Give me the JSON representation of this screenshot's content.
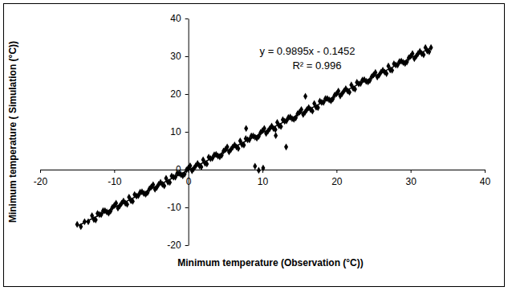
{
  "chart_data": {
    "type": "scatter",
    "x_label": "Minimum temperature (Observation (°C))",
    "y_label": "Minimum temperature ( Simulation (°C))",
    "annotations": [
      "y = 0.9895x - 0.1452",
      "R² = 0.996"
    ],
    "xlim": [
      -20,
      40
    ],
    "xticks": [
      -20,
      -10,
      0,
      10,
      20,
      30,
      40
    ],
    "ylim": [
      -20,
      40
    ],
    "yticks": [
      -20,
      -10,
      0,
      10,
      20,
      30,
      40
    ],
    "grid": false,
    "series": [
      {
        "type": "scatter",
        "color": "#000000",
        "marker": "diamond",
        "x": [
          -15,
          -14.5,
          -14,
          -13.5,
          -13,
          -12.5,
          -12,
          -11.5,
          -11,
          -10.5,
          -10,
          -9.5,
          -9,
          -8.5,
          -8,
          -7.5,
          -7,
          -6.5,
          -6,
          -5.5,
          -5,
          -4.5,
          -4,
          -3.5,
          -3,
          -2.5,
          -2,
          -1.5,
          -1,
          -0.5,
          0,
          0.5,
          1,
          1.5,
          2,
          2.5,
          3,
          3.5,
          4,
          4.5,
          5,
          5.5,
          6,
          6.5,
          7,
          7.5,
          8,
          8.5,
          9,
          9.5,
          10,
          10.5,
          11,
          11.5,
          12,
          12.5,
          13,
          13.5,
          14,
          14.5,
          15,
          15.5,
          16,
          16.5,
          17,
          17.5,
          18,
          18.5,
          19,
          19.5,
          20,
          20.5,
          21,
          21.5,
          22,
          22.5,
          23,
          23.5,
          24,
          24.5,
          25,
          25.5,
          26,
          26.5,
          27,
          27.5,
          28,
          28.5,
          29,
          29.5,
          30,
          30.5,
          31,
          31.5,
          32,
          32.5,
          -12.75,
          -12.25,
          -11.75,
          -11.25,
          -10.75,
          -10.25,
          -9.75,
          -9.25,
          -8.75,
          -8.25,
          -7.75,
          -7.25,
          -6.75,
          -6.25,
          -5.75,
          -5.25,
          -4.75,
          -4.25,
          -3.75,
          -3.25,
          -2.75,
          -2.25,
          -1.75,
          -1.25,
          -0.75,
          -0.25,
          0.25,
          0.75,
          1.25,
          1.75,
          2.25,
          2.75,
          3.25,
          3.75,
          4.25,
          4.75,
          5.25,
          5.75,
          6.25,
          6.75,
          7.25,
          7.75,
          8.25,
          8.75,
          9.25,
          9.75,
          10.25,
          10.75,
          11.25,
          11.75,
          12.25,
          12.75,
          13.25,
          13.75,
          14.25,
          14.75,
          15.25,
          15.75,
          16.25,
          16.75,
          17.25,
          17.75,
          18.25,
          18.75,
          19.25,
          19.75,
          20.25,
          20.75,
          21.25,
          21.75,
          22.25,
          22.75,
          23.25,
          23.75,
          24.25,
          24.75,
          25.25,
          25.75,
          26.25,
          26.75,
          27.25,
          27.75,
          28.25,
          28.75,
          29.25,
          29.75,
          30.25,
          30.75,
          31.25,
          31.75,
          32.25,
          32.75,
          9.0,
          9.5,
          10.1,
          13.2,
          11.8,
          7.8,
          15.8
        ],
        "values": [
          -14.5,
          -15.1,
          -13.8,
          -13.8,
          -12.2,
          -13.3,
          -11.9,
          -10.9,
          -11.2,
          -11.0,
          -9.5,
          -10.2,
          -8.9,
          -8.9,
          -7.3,
          -8.4,
          -7.0,
          -6.0,
          -6.3,
          -6.1,
          -4.6,
          -5.2,
          -3.9,
          -3.9,
          -2.3,
          -3.4,
          -2.0,
          -1.0,
          -1.3,
          -1.2,
          0.4,
          -0.3,
          1.0,
          1.0,
          2.6,
          1.5,
          2.9,
          3.9,
          3.6,
          3.8,
          5.3,
          4.7,
          6.0,
          6.0,
          7.6,
          6.5,
          7.9,
          8.9,
          8.6,
          8.8,
          10.3,
          9.6,
          10.9,
          10.9,
          12.5,
          11.4,
          12.8,
          13.8,
          13.5,
          13.7,
          15.2,
          14.6,
          15.9,
          15.9,
          17.5,
          16.4,
          17.8,
          18.8,
          18.5,
          18.7,
          20.1,
          19.5,
          20.8,
          20.8,
          22.4,
          21.3,
          22.7,
          23.7,
          23.4,
          23.6,
          25.1,
          24.5,
          25.8,
          25.8,
          27.4,
          26.3,
          27.7,
          28.6,
          28.4,
          28.5,
          30.0,
          29.4,
          30.7,
          30.7,
          32.3,
          31.2,
          -13.2,
          -11.6,
          -11.9,
          -10.9,
          -11.5,
          -10.0,
          -8.9,
          -9.6,
          -8.3,
          -9.2,
          -8.2,
          -6.6,
          -6.9,
          -5.9,
          -6.5,
          -5.1,
          -4.0,
          -4.7,
          -3.4,
          -4.3,
          -3.3,
          -1.7,
          -2.0,
          -1.0,
          -1.6,
          -0.1,
          1.0,
          0.3,
          1.6,
          0.7,
          1.7,
          3.3,
          3.0,
          4.0,
          3.4,
          4.9,
          6.0,
          5.3,
          6.5,
          5.6,
          6.6,
          8.2,
          7.9,
          8.9,
          8.3,
          9.8,
          10.9,
          10.2,
          11.5,
          10.6,
          11.6,
          13.2,
          12.9,
          13.9,
          13.3,
          14.8,
          15.9,
          15.2,
          16.4,
          15.5,
          16.5,
          18.1,
          17.8,
          18.8,
          18.2,
          19.7,
          20.8,
          20.1,
          21.4,
          20.5,
          21.5,
          23.1,
          22.8,
          23.8,
          23.2,
          24.6,
          25.7,
          25.0,
          26.3,
          25.4,
          26.4,
          28.0,
          27.7,
          28.7,
          28.1,
          29.6,
          30.7,
          30.0,
          31.3,
          30.4,
          31.4,
          32.3,
          0.9,
          -0.2,
          0.4,
          6.0,
          9.0,
          10.9,
          19.4
        ]
      },
      {
        "type": "line",
        "color": "#000000",
        "line_style": "solid",
        "x": [
          -14.8,
          32.8
        ],
        "values": [
          -14.79,
          32.31
        ]
      }
    ]
  }
}
